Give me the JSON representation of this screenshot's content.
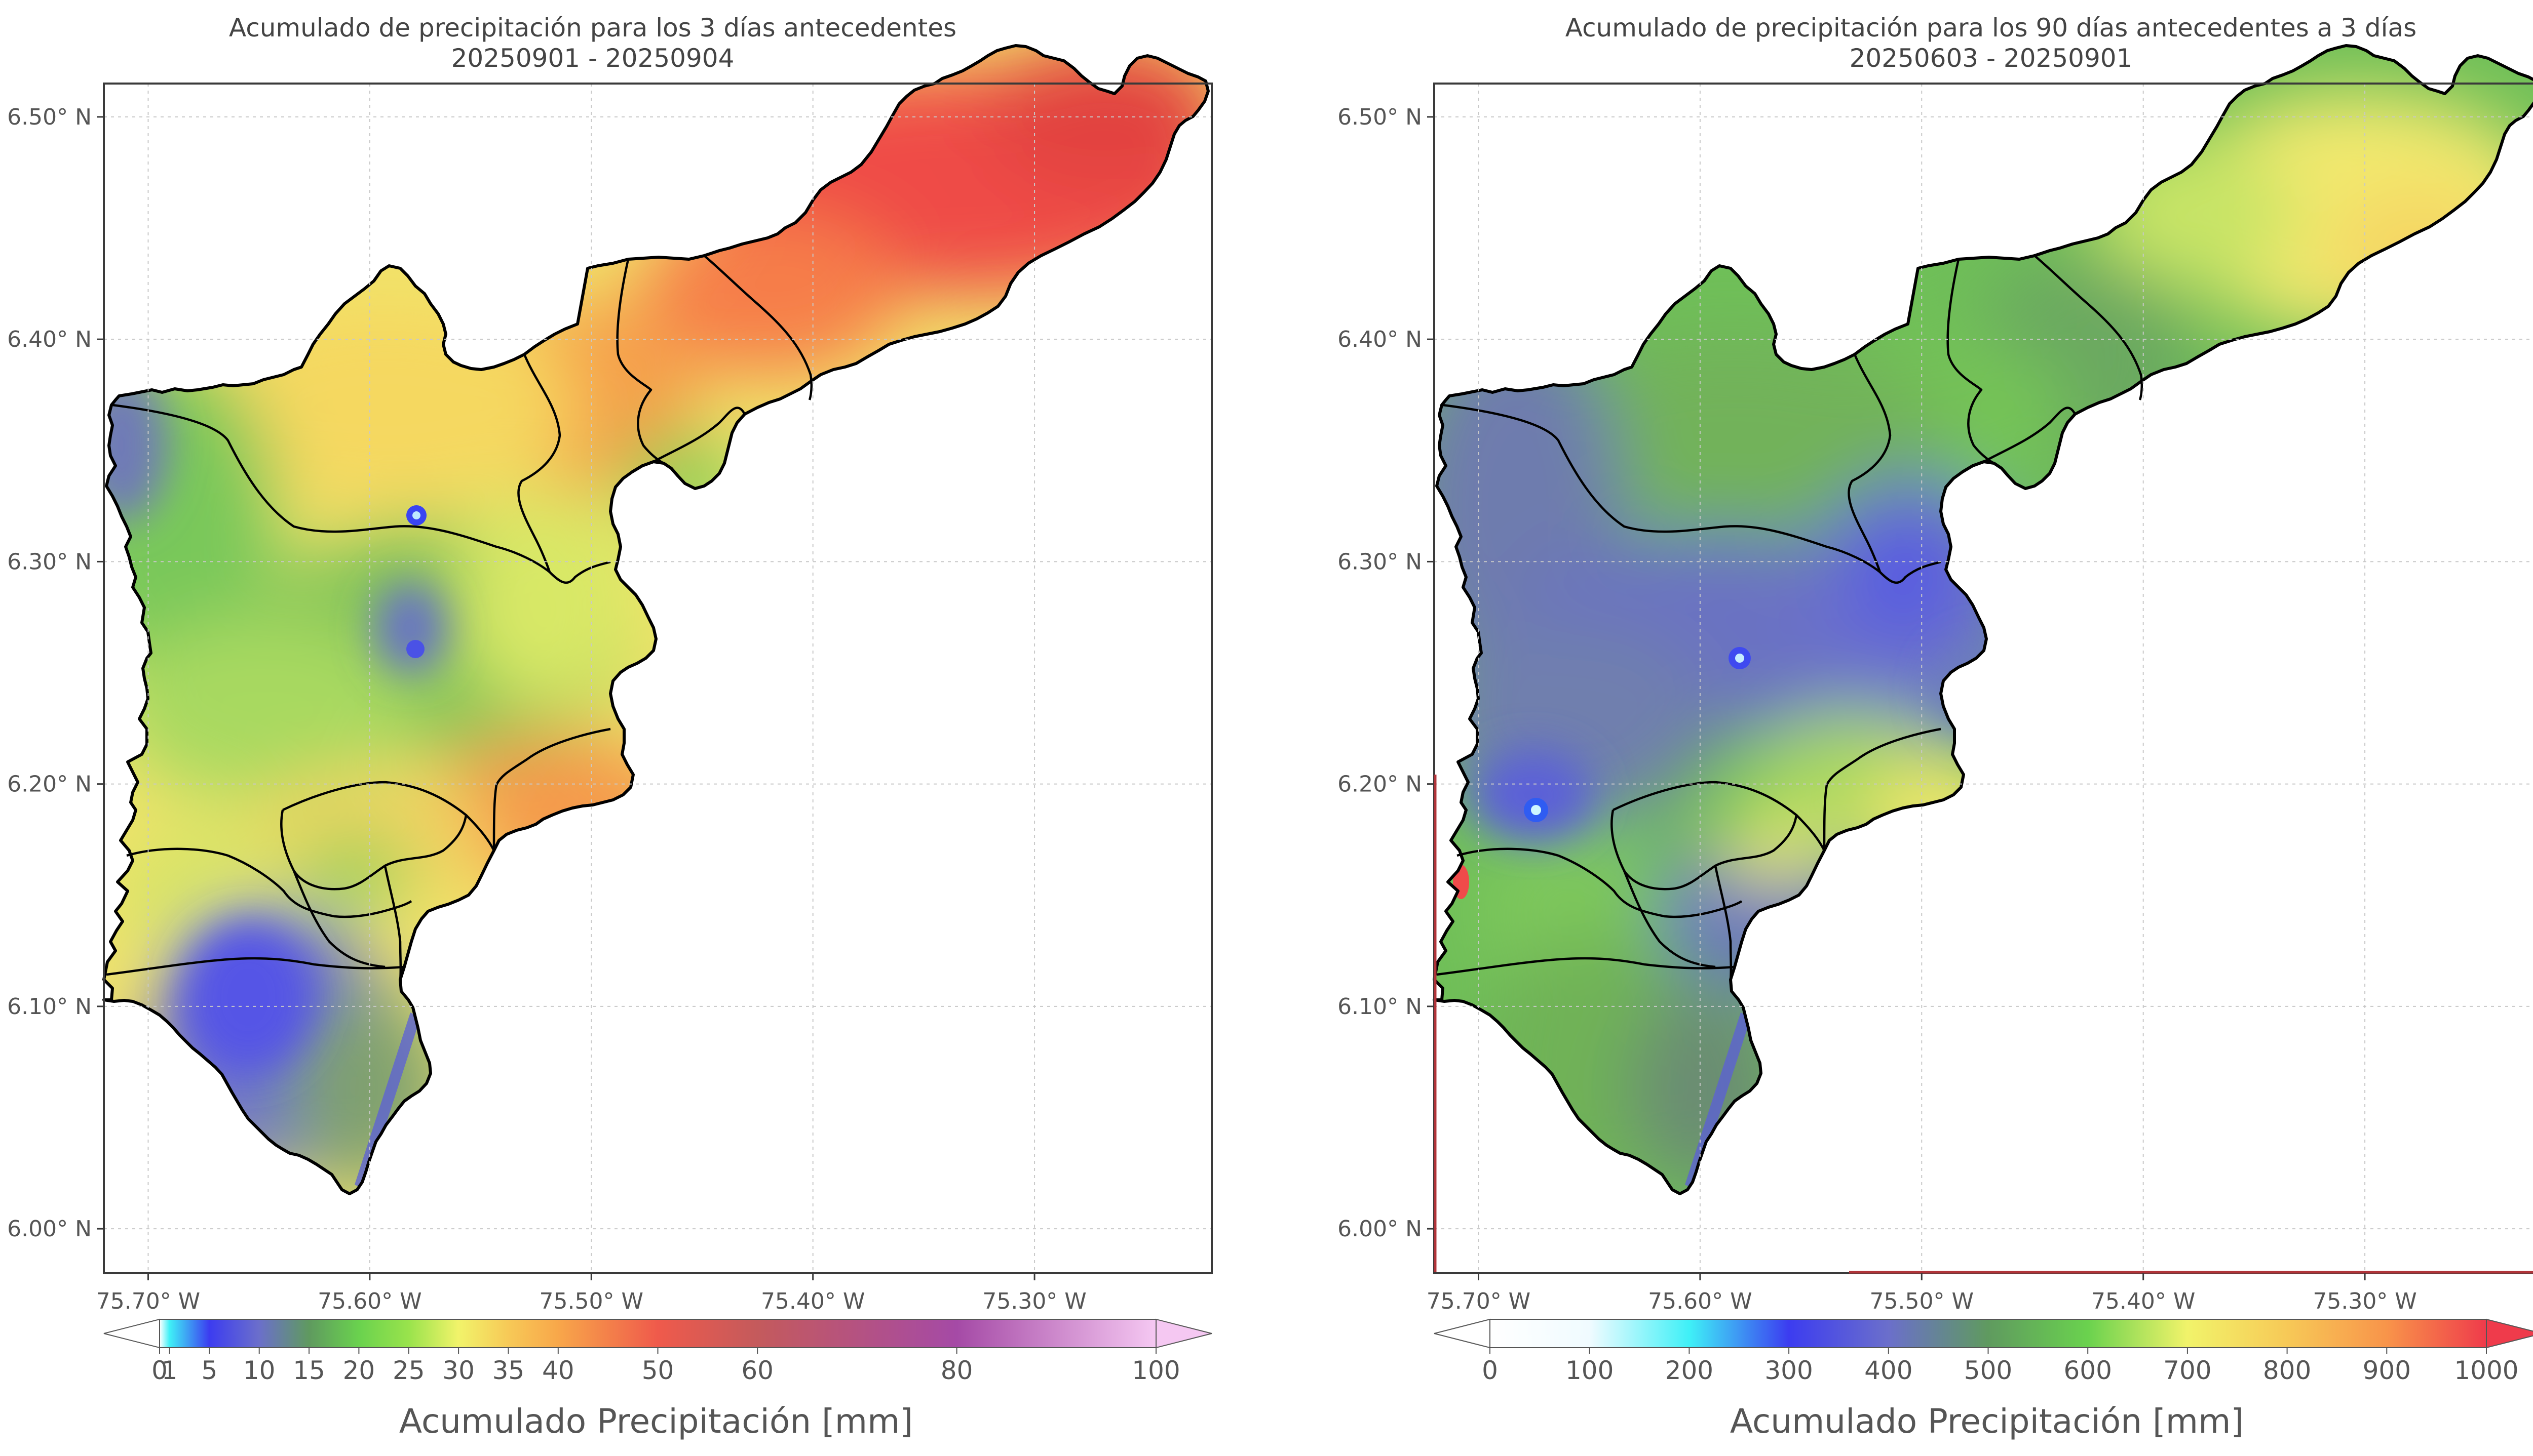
{
  "left_map": {
    "title_line1": "Acumulado de precipitación para los 3 días antecedentes",
    "title_line2": "20250901 - 20250904",
    "colorbar": {
      "label": "Acumulado Precipitación [mm]",
      "ticks": [
        "0",
        "1",
        "5",
        "10",
        "15",
        "20",
        "25",
        "30",
        "35",
        "40",
        "50",
        "60",
        "80",
        "100"
      ],
      "tick_values": [
        0,
        1,
        5,
        10,
        15,
        20,
        25,
        30,
        35,
        40,
        50,
        60,
        80,
        100
      ],
      "colors": [
        "#ffffff",
        "#3ff0f7",
        "#3c3cf0",
        "#6b6fcb",
        "#5f9a5f",
        "#6ad24e",
        "#99e34c",
        "#f1f36a",
        "#f7c957",
        "#f8a74a",
        "#ef5a4b",
        "#c45a5c",
        "#a54aa6",
        "#f5c8f2"
      ]
    },
    "rainfall_pattern": "highest (about 50–60 mm) in the northeast, 25–35 mm across the centre, lowest (about 10–15 mm) in the southwest"
  },
  "right_map": {
    "title_line1": "Acumulado de precipitación para los 90 días antecedentes a 3 días",
    "title_line2": "20250603 - 20250901",
    "colorbar": {
      "label": "Acumulado Precipitación [mm]",
      "ticks": [
        "0",
        "100",
        "200",
        "300",
        "400",
        "500",
        "600",
        "700",
        "800",
        "900",
        "1000"
      ],
      "tick_values": [
        0,
        100,
        200,
        300,
        400,
        500,
        600,
        700,
        800,
        900,
        1000
      ],
      "colors": [
        "#ffffff",
        "#f0fbff",
        "#3ff0f7",
        "#3c3cf0",
        "#6b6fcb",
        "#5f9a5f",
        "#6ad24e",
        "#f1f36a",
        "#f7c957",
        "#f8944a",
        "#ef3b4b"
      ]
    },
    "rainfall_pattern": "highest (about 700–800 mm) in the northeast, 400–500 mm across the centre and west, lowest (about 300 mm) in small central spots"
  },
  "axes": {
    "lon_labels": [
      "75.70° W",
      "75.60° W",
      "75.50° W",
      "75.40° W",
      "75.30° W"
    ],
    "lon_values": [
      -75.7,
      -75.6,
      -75.5,
      -75.4,
      -75.3
    ],
    "lat_labels": [
      "6.50° N",
      "6.40° N",
      "6.30° N",
      "6.20° N",
      "6.10° N",
      "6.00° N"
    ],
    "lat_values": [
      6.5,
      6.4,
      6.3,
      6.2,
      6.1,
      6.0
    ],
    "lon_range": [
      -75.72,
      -75.22
    ],
    "lat_range": [
      5.98,
      6.515
    ],
    "grid": true
  }
}
